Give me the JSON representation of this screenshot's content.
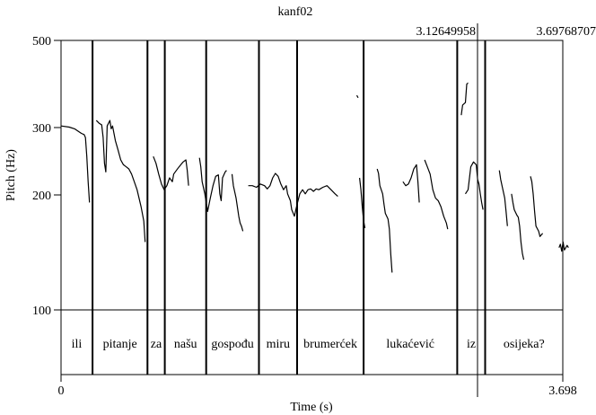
{
  "chart_data": {
    "type": "line",
    "title": "kanf02",
    "xlabel": "Time (s)",
    "ylabel": "Pitch (Hz)",
    "x_range": [
      0,
      3.698
    ],
    "x_tick_labels": [
      "0",
      "3.698"
    ],
    "y_scale": "log",
    "y_range": [
      100,
      500
    ],
    "y_tick_labels": [
      "500",
      "300",
      "200",
      "100"
    ],
    "y_ticks": [
      500,
      300,
      200,
      100
    ],
    "selection_labels": [
      "3.12649958",
      "3.69768707"
    ],
    "selection": [
      3.12649958,
      3.69768707
    ],
    "boundaries": [
      0.232,
      0.637,
      0.765,
      1.07,
      1.459,
      1.74,
      2.23,
      2.92,
      3.126
    ],
    "words": [
      {
        "label": "ili",
        "start": 0.0,
        "end": 0.232
      },
      {
        "label": "pitanje",
        "start": 0.232,
        "end": 0.637
      },
      {
        "label": "za",
        "start": 0.637,
        "end": 0.765
      },
      {
        "label": "našu",
        "start": 0.765,
        "end": 1.07
      },
      {
        "label": "gospođu",
        "start": 1.07,
        "end": 1.459
      },
      {
        "label": "miru",
        "start": 1.459,
        "end": 1.74
      },
      {
        "label": "brumerćek",
        "start": 1.74,
        "end": 2.23
      },
      {
        "label": "lukaćević",
        "start": 2.23,
        "end": 2.92
      },
      {
        "label": "iz",
        "start": 2.92,
        "end": 3.126
      },
      {
        "label": "osijeka?",
        "start": 3.126,
        "end": 3.698
      }
    ],
    "series": [
      {
        "points": [
          [
            0.0,
            300
          ],
          [
            0.06,
            298
          ],
          [
            0.1,
            295
          ],
          [
            0.13,
            290
          ],
          [
            0.15,
            287
          ],
          [
            0.17,
            285
          ],
          [
            0.18,
            280
          ],
          [
            0.19,
            250
          ],
          [
            0.2,
            215
          ],
          [
            0.21,
            190
          ]
        ]
      },
      {
        "points": [
          [
            0.26,
            310
          ],
          [
            0.28,
            305
          ],
          [
            0.3,
            302
          ],
          [
            0.31,
            280
          ],
          [
            0.32,
            240
          ],
          [
            0.33,
            228
          ],
          [
            0.34,
            300
          ],
          [
            0.36,
            310
          ],
          [
            0.37,
            295
          ],
          [
            0.38,
            300
          ],
          [
            0.4,
            275
          ],
          [
            0.42,
            260
          ],
          [
            0.44,
            245
          ],
          [
            0.46,
            238
          ],
          [
            0.48,
            235
          ],
          [
            0.5,
            232
          ],
          [
            0.52,
            225
          ],
          [
            0.54,
            215
          ],
          [
            0.56,
            205
          ],
          [
            0.59,
            185
          ],
          [
            0.61,
            170
          ],
          [
            0.62,
            150
          ]
        ]
      },
      {
        "points": [
          [
            0.68,
            250
          ],
          [
            0.7,
            240
          ],
          [
            0.72,
            225
          ],
          [
            0.74,
            212
          ],
          [
            0.76,
            205
          ],
          [
            0.78,
            210
          ],
          [
            0.8,
            220
          ],
          [
            0.82,
            215
          ],
          [
            0.83,
            225
          ],
          [
            0.85,
            230
          ],
          [
            0.87,
            235
          ],
          [
            0.9,
            242
          ],
          [
            0.92,
            245
          ],
          [
            0.93,
            230
          ],
          [
            0.94,
            210
          ]
        ]
      },
      {
        "points": [
          [
            1.02,
            248
          ],
          [
            1.03,
            235
          ],
          [
            1.04,
            215
          ],
          [
            1.06,
            200
          ],
          [
            1.08,
            180
          ],
          [
            1.1,
            195
          ],
          [
            1.12,
            210
          ],
          [
            1.14,
            222
          ],
          [
            1.16,
            224
          ],
          [
            1.17,
            200
          ],
          [
            1.18,
            192
          ],
          [
            1.19,
            220
          ],
          [
            1.21,
            228
          ],
          [
            1.22,
            230
          ]
        ]
      },
      {
        "points": [
          [
            1.26,
            225
          ],
          [
            1.27,
            210
          ],
          [
            1.29,
            195
          ],
          [
            1.31,
            175
          ],
          [
            1.32,
            168
          ],
          [
            1.33,
            165
          ],
          [
            1.34,
            160
          ]
        ]
      },
      {
        "points": [
          [
            1.38,
            210
          ],
          [
            1.41,
            210
          ],
          [
            1.44,
            208
          ],
          [
            1.47,
            212
          ],
          [
            1.5,
            210
          ],
          [
            1.52,
            206
          ],
          [
            1.54,
            210
          ],
          [
            1.56,
            220
          ],
          [
            1.58,
            226
          ],
          [
            1.6,
            222
          ],
          [
            1.62,
            212
          ],
          [
            1.64,
            205
          ],
          [
            1.66,
            210
          ],
          [
            1.67,
            200
          ],
          [
            1.69,
            192
          ],
          [
            1.7,
            182
          ],
          [
            1.72,
            175
          ],
          [
            1.74,
            188
          ],
          [
            1.76,
            200
          ],
          [
            1.78,
            205
          ],
          [
            1.8,
            200
          ],
          [
            1.82,
            205
          ],
          [
            1.84,
            206
          ],
          [
            1.86,
            203
          ],
          [
            1.88,
            206
          ],
          [
            1.9,
            205
          ],
          [
            1.93,
            208
          ],
          [
            1.96,
            210
          ],
          [
            1.99,
            205
          ],
          [
            2.02,
            200
          ],
          [
            2.04,
            197
          ]
        ]
      },
      {
        "points": [
          [
            2.18,
            360
          ],
          [
            2.19,
            355
          ]
        ]
      },
      {
        "points": [
          [
            2.2,
            220
          ],
          [
            2.21,
            205
          ],
          [
            2.22,
            185
          ],
          [
            2.23,
            170
          ],
          [
            2.24,
            163
          ]
        ]
      },
      {
        "points": [
          [
            2.33,
            232
          ],
          [
            2.34,
            226
          ],
          [
            2.35,
            210
          ],
          [
            2.37,
            200
          ],
          [
            2.38,
            188
          ],
          [
            2.39,
            178
          ],
          [
            2.41,
            172
          ],
          [
            2.42,
            162
          ],
          [
            2.43,
            140
          ],
          [
            2.44,
            125
          ]
        ]
      },
      {
        "points": [
          [
            2.52,
            215
          ],
          [
            2.54,
            210
          ],
          [
            2.56,
            212
          ],
          [
            2.58,
            220
          ],
          [
            2.6,
            232
          ],
          [
            2.62,
            238
          ],
          [
            2.63,
            215
          ],
          [
            2.64,
            190
          ]
        ]
      },
      {
        "points": [
          [
            2.68,
            245
          ],
          [
            2.7,
            235
          ],
          [
            2.72,
            225
          ],
          [
            2.74,
            205
          ],
          [
            2.76,
            195
          ],
          [
            2.78,
            192
          ],
          [
            2.8,
            185
          ],
          [
            2.82,
            175
          ],
          [
            2.84,
            168
          ],
          [
            2.85,
            162
          ]
        ]
      },
      {
        "points": [
          [
            2.95,
            320
          ],
          [
            2.96,
            340
          ],
          [
            2.98,
            345
          ],
          [
            2.99,
            385
          ],
          [
            3.0,
            388
          ]
        ]
      },
      {
        "points": [
          [
            2.98,
            200
          ],
          [
            3.0,
            205
          ],
          [
            3.02,
            235
          ],
          [
            3.04,
            242
          ],
          [
            3.06,
            238
          ],
          [
            3.07,
            218
          ],
          [
            3.08,
            212
          ],
          [
            3.09,
            200
          ],
          [
            3.1,
            190
          ],
          [
            3.11,
            182
          ]
        ]
      },
      {
        "points": [
          [
            3.23,
            230
          ],
          [
            3.24,
            218
          ],
          [
            3.25,
            210
          ],
          [
            3.27,
            195
          ],
          [
            3.28,
            180
          ],
          [
            3.29,
            165
          ]
        ]
      },
      {
        "points": [
          [
            3.32,
            200
          ],
          [
            3.33,
            190
          ],
          [
            3.34,
            182
          ],
          [
            3.36,
            176
          ],
          [
            3.37,
            174
          ],
          [
            3.38,
            165
          ],
          [
            3.39,
            150
          ],
          [
            3.4,
            140
          ],
          [
            3.41,
            135
          ]
        ]
      },
      {
        "points": [
          [
            3.46,
            222
          ],
          [
            3.47,
            215
          ],
          [
            3.48,
            200
          ],
          [
            3.49,
            180
          ],
          [
            3.5,
            165
          ],
          [
            3.52,
            160
          ],
          [
            3.53,
            155
          ],
          [
            3.55,
            158
          ]
        ]
      },
      {
        "points": [
          [
            3.67,
            145
          ],
          [
            3.68,
            148
          ],
          [
            3.69,
            142
          ],
          [
            3.7,
            150
          ],
          [
            3.71,
            143
          ],
          [
            3.73,
            147
          ],
          [
            3.74,
            145
          ]
        ]
      }
    ]
  }
}
